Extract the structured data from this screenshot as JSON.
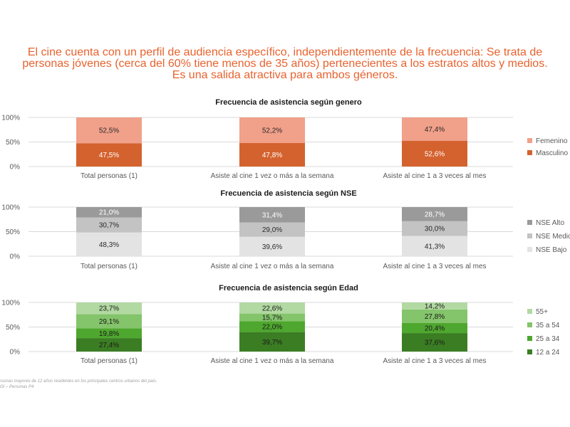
{
  "headline": [
    "El cine cuenta con un perfil de audiencia específico, independientemente de la frecuencia: Se trata de",
    "personas jóvenes (cerca del 60% tiene menos de 35 años) pertenecientes a los estratos altos y medios.",
    "Es una salida atractiva para ambos géneros."
  ],
  "footnotes": [
    "rsonas mayores de 12 años residentes en los principales centros urbanos del país.",
    "GI – Personas P4"
  ],
  "chart_data": [
    {
      "type": "bar",
      "stacked": true,
      "title": "Frecuencia de asistencia según genero",
      "categories": [
        "Total personas (1)",
        "Asiste al cine 1 vez o más a la semana",
        "Asiste al cine 1 a 3 veces al mes"
      ],
      "yticks": [
        "0%",
        "50%",
        "100%"
      ],
      "ylim": [
        0,
        100
      ],
      "legend_position": "right",
      "series": [
        {
          "name": "Masculino",
          "color": "#d4622e",
          "text_color": "#ffffff",
          "values": [
            47.5,
            47.8,
            52.6
          ],
          "labels": [
            "47,5%",
            "47,8%",
            "52,6%"
          ]
        },
        {
          "name": "Femenino",
          "color": "#f1a08a",
          "text_color": "#2a2a2a",
          "values": [
            52.5,
            52.2,
            47.4
          ],
          "labels": [
            "52,5%",
            "52,2%",
            "47,4%"
          ]
        }
      ]
    },
    {
      "type": "bar",
      "stacked": true,
      "title": "Frecuencia de asistencia según NSE",
      "categories": [
        "Total personas (1)",
        "Asiste al cine 1 vez o más a la semana",
        "Asiste al cine 1 a 3 veces al mes"
      ],
      "yticks": [
        "0%",
        "50%",
        "100%"
      ],
      "ylim": [
        0,
        100
      ],
      "legend_position": "right",
      "series": [
        {
          "name": "NSE Bajo",
          "color": "#e3e3e3",
          "text_color": "#2a2a2a",
          "values": [
            48.3,
            39.6,
            41.3
          ],
          "labels": [
            "48,3%",
            "39,6%",
            "41,3%"
          ]
        },
        {
          "name": "NSE Medio",
          "color": "#c3c3c3",
          "text_color": "#2a2a2a",
          "values": [
            30.7,
            29.0,
            30.0
          ],
          "labels": [
            "30,7%",
            "29,0%",
            "30,0%"
          ]
        },
        {
          "name": "NSE Alto",
          "color": "#9a9a9a",
          "text_color": "#ffffff",
          "values": [
            21.0,
            31.4,
            28.7
          ],
          "labels": [
            "21,0%",
            "31,4%",
            "28,7%"
          ]
        }
      ]
    },
    {
      "type": "bar",
      "stacked": true,
      "title": "Frecuencia de asistencia según Edad",
      "categories": [
        "Total personas (1)",
        "Asiste al cine 1 vez o más a la semana",
        "Asiste al cine 1 a 3 veces al mes"
      ],
      "yticks": [
        "0%",
        "50%",
        "100%"
      ],
      "ylim": [
        0,
        100
      ],
      "legend_position": "right",
      "series": [
        {
          "name": "12 a 24",
          "color": "#3b7d23",
          "text_color": "#1a1a1a",
          "values": [
            27.4,
            39.7,
            37.6
          ],
          "labels": [
            "27,4%",
            "39,7%",
            "37,6%"
          ]
        },
        {
          "name": "25 a 34",
          "color": "#4ea72e",
          "text_color": "#1a1a1a",
          "values": [
            19.8,
            22.0,
            20.4
          ],
          "labels": [
            "19,8%",
            "22,0%",
            "20,4%"
          ]
        },
        {
          "name": "35 a 54",
          "color": "#84c46b",
          "text_color": "#1a1a1a",
          "values": [
            29.1,
            15.7,
            27.8
          ],
          "labels": [
            "29,1%",
            "15,7%",
            "27,8%"
          ]
        },
        {
          "name": "55+",
          "color": "#b2d9a2",
          "text_color": "#1a1a1a",
          "values": [
            23.7,
            22.6,
            14.2
          ],
          "labels": [
            "23,7%",
            "22,6%",
            "14,2%"
          ]
        }
      ]
    }
  ]
}
